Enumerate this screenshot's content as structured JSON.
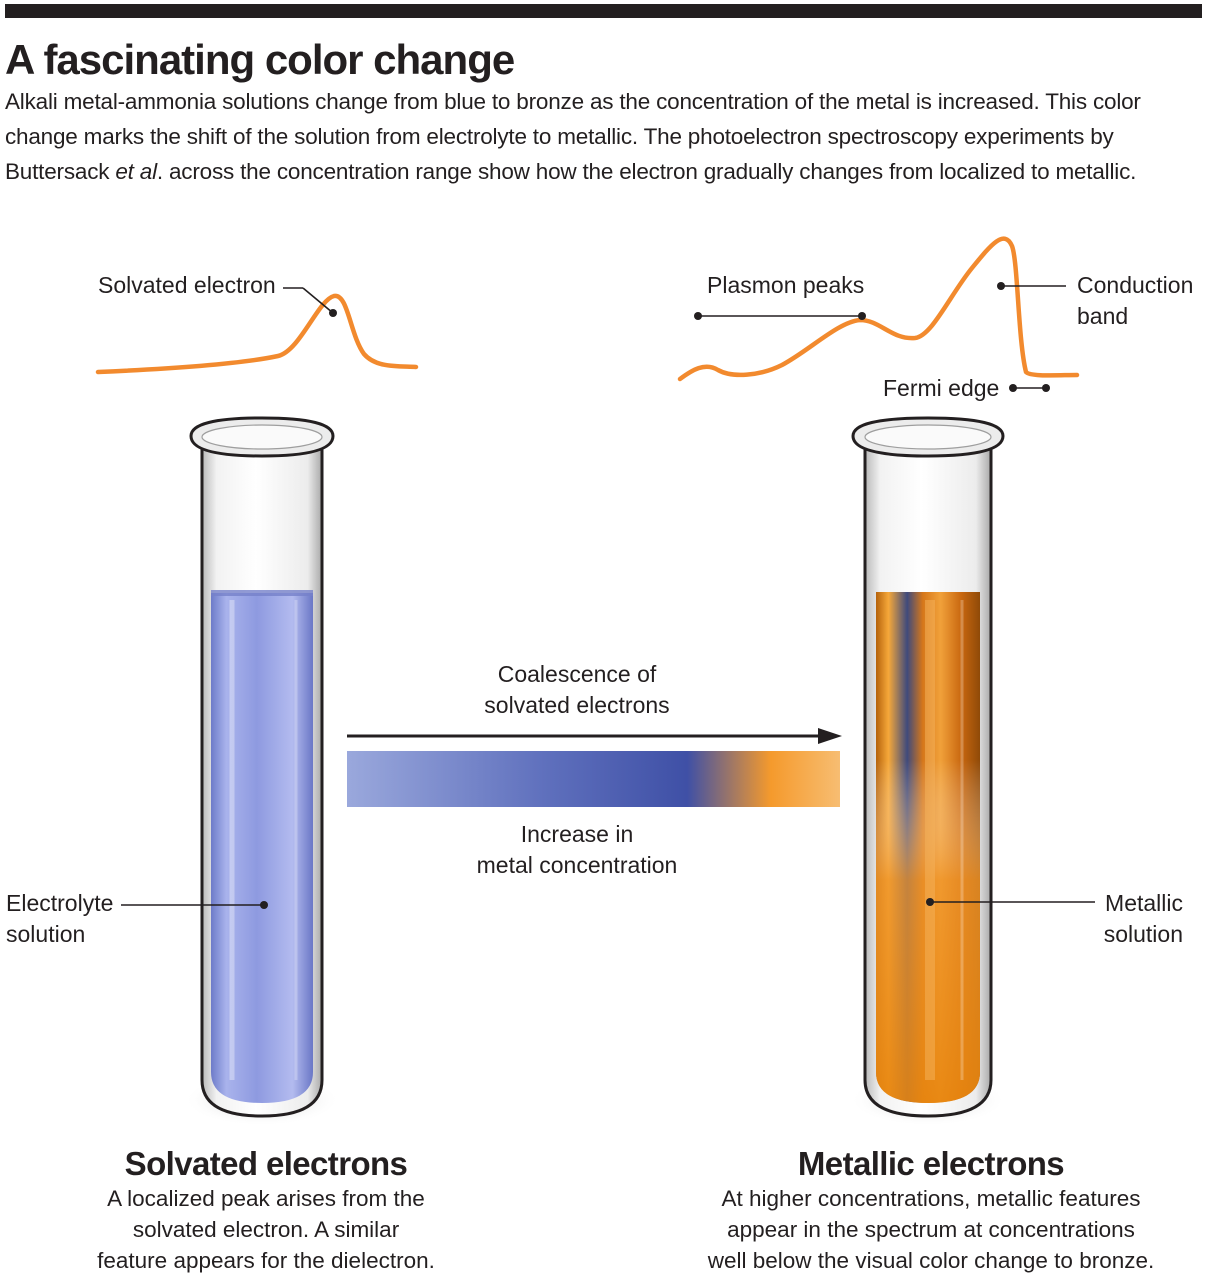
{
  "title": "A fascinating color change",
  "intro": {
    "before_italic": "Alkali metal-ammonia solutions change from blue to bronze as the concentration of the metal is increased. This color change marks the shift of the solution from electrolyte to metallic. The photoelectron spectroscopy experiments by Buttersack ",
    "italic": "et al",
    "after_italic": ". across the concentration range show how the electron gradually changes from localized to metallic."
  },
  "spectra": {
    "left": {
      "label": "Solvated electron"
    },
    "right": {
      "plasmon_label": "Plasmon peaks",
      "conduction_label": [
        "Conduction",
        "band"
      ],
      "fermi_label": "Fermi edge"
    }
  },
  "arrow": {
    "top_label": [
      "Coalescence of",
      "solvated electrons"
    ],
    "bottom_label": [
      "Increase in",
      "metal concentration"
    ]
  },
  "tubes": {
    "left": {
      "label": [
        "Electrolyte",
        "solution"
      ]
    },
    "right": {
      "label": [
        "Metallic",
        "solution"
      ]
    }
  },
  "panels": {
    "left": {
      "heading": "Solvated electrons",
      "text": [
        "A localized peak arises from the",
        "solvated electron. A similar",
        "feature appears for the dielectron."
      ]
    },
    "right": {
      "heading": "Metallic electrons",
      "text": [
        "At higher concentrations, metallic features",
        "appear in the spectrum at concentrations",
        "well below the visual color change to bronze."
      ]
    }
  },
  "colors": {
    "spectrum_line": "#f28a2e",
    "electrolyte_solution": "#8c98db",
    "metallic_solution": "#e88a1a",
    "gradient_start": "#9aa8dc",
    "gradient_mid": "#3f50a6",
    "gradient_end": "#f7bd72",
    "text": "#231f20"
  }
}
